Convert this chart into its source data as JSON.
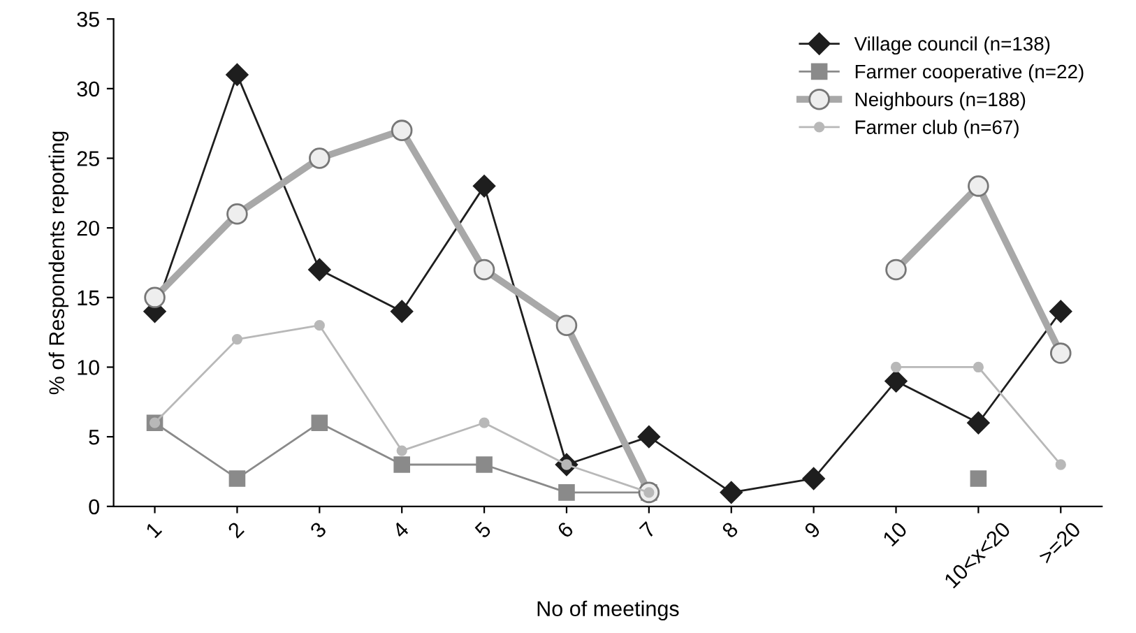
{
  "chart_data": {
    "type": "line",
    "xlabel": "No of meetings",
    "ylabel": "% of Respondents reporting",
    "categories": [
      "1",
      "2",
      "3",
      "4",
      "5",
      "6",
      "7",
      "8",
      "9",
      "10",
      "10<x<20",
      ">=20"
    ],
    "ylim": [
      0,
      35
    ],
    "yticks": [
      0,
      5,
      10,
      15,
      20,
      25,
      30,
      35
    ],
    "legend": "top right",
    "grid": false,
    "series": [
      {
        "name": "Village council (n=138)",
        "color": "#1e1e1e",
        "marker": "diamond",
        "values": [
          14,
          31,
          17,
          14,
          23,
          3,
          5,
          1,
          2,
          9,
          6,
          14
        ]
      },
      {
        "name": "Farmer cooperative (n=22)",
        "color": "#8a8a8a",
        "marker": "square",
        "values": [
          6,
          2,
          6,
          3,
          3,
          1,
          1,
          null,
          null,
          null,
          2,
          null
        ]
      },
      {
        "name": "Neighbours (n=188)",
        "color": "#a8a8a8",
        "marker": "circle",
        "values": [
          15,
          21,
          25,
          27,
          17,
          13,
          1,
          null,
          null,
          17,
          23,
          11
        ]
      },
      {
        "name": "Farmer club (n=67)",
        "color": "#b8b8b8",
        "marker": "circle",
        "values": [
          6,
          12,
          13,
          4,
          6,
          3,
          1,
          null,
          null,
          10,
          10,
          3
        ]
      }
    ]
  }
}
